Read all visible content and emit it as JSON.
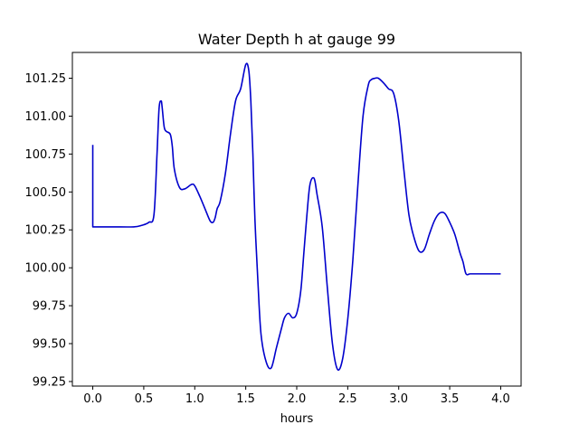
{
  "chart_data": {
    "type": "line",
    "title": "Water Depth h at gauge 99",
    "xlabel": "hours",
    "ylabel": "",
    "xlim": [
      -0.2,
      4.2
    ],
    "ylim": [
      99.22,
      101.42
    ],
    "xticks": [
      0.0,
      0.5,
      1.0,
      1.5,
      2.0,
      2.5,
      3.0,
      3.5,
      4.0
    ],
    "xtick_labels": [
      "0.0",
      "0.5",
      "1.0",
      "1.5",
      "2.0",
      "2.5",
      "3.0",
      "3.5",
      "4.0"
    ],
    "yticks": [
      99.25,
      99.5,
      99.75,
      100.0,
      100.25,
      100.5,
      100.75,
      101.0,
      101.25
    ],
    "ytick_labels": [
      "99.25",
      "99.50",
      "99.75",
      "100.00",
      "100.25",
      "100.50",
      "100.75",
      "101.00",
      "101.25"
    ],
    "grid": false,
    "series": [
      {
        "color": "#0000cc",
        "x": [
          0.0,
          0.0,
          0.05,
          0.2,
          0.4,
          0.48,
          0.55,
          0.6,
          0.63,
          0.65,
          0.67,
          0.68,
          0.7,
          0.72,
          0.76,
          0.78,
          0.8,
          0.85,
          0.9,
          0.97,
          1.0,
          1.05,
          1.1,
          1.15,
          1.18,
          1.2,
          1.22,
          1.25,
          1.3,
          1.35,
          1.4,
          1.45,
          1.5,
          1.53,
          1.55,
          1.57,
          1.59,
          1.62,
          1.65,
          1.7,
          1.75,
          1.8,
          1.85,
          1.88,
          1.92,
          1.96,
          2.0,
          2.04,
          2.07,
          2.1,
          2.13,
          2.17,
          2.2,
          2.25,
          2.3,
          2.35,
          2.4,
          2.45,
          2.5,
          2.55,
          2.6,
          2.65,
          2.7,
          2.73,
          2.77,
          2.8,
          2.85,
          2.9,
          2.95,
          3.0,
          3.05,
          3.1,
          3.15,
          3.2,
          3.25,
          3.3,
          3.35,
          3.4,
          3.45,
          3.5,
          3.55,
          3.6,
          3.63,
          3.66,
          3.7,
          3.75,
          3.8,
          3.85,
          3.9,
          3.95,
          4.0
        ],
        "y": [
          100.81,
          100.27,
          100.27,
          100.27,
          100.27,
          100.28,
          100.3,
          100.35,
          100.75,
          101.05,
          101.1,
          101.06,
          100.93,
          100.9,
          100.88,
          100.8,
          100.65,
          100.53,
          100.52,
          100.55,
          100.54,
          100.47,
          100.39,
          100.31,
          100.3,
          100.33,
          100.39,
          100.44,
          100.62,
          100.88,
          101.1,
          101.18,
          101.34,
          101.3,
          101.1,
          100.75,
          100.32,
          99.9,
          99.56,
          99.38,
          99.34,
          99.47,
          99.6,
          99.67,
          99.7,
          99.67,
          99.7,
          99.85,
          100.1,
          100.35,
          100.55,
          100.59,
          100.48,
          100.27,
          99.87,
          99.5,
          99.33,
          99.4,
          99.66,
          100.05,
          100.55,
          101.0,
          101.2,
          101.24,
          101.25,
          101.25,
          101.22,
          101.18,
          101.15,
          100.97,
          100.65,
          100.35,
          100.2,
          100.11,
          100.12,
          100.22,
          100.31,
          100.36,
          100.36,
          100.3,
          100.22,
          100.1,
          100.04,
          99.96,
          99.96,
          99.96,
          99.96,
          99.96,
          99.96,
          99.96,
          99.96
        ]
      }
    ]
  }
}
